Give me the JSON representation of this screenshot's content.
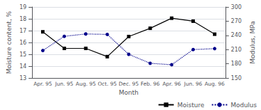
{
  "chart_data": {
    "type": "line",
    "xlabel": "Month",
    "ylabel": "Moisture content, %",
    "y2label": "Modulus, MPa",
    "categories": [
      "Apr. 95",
      "Jun. 95",
      "Aug. 95",
      "Oct. 95",
      "Dec. 95",
      "Feb. 96",
      "Apr. 96",
      "Jun. 96",
      "Aug. 96"
    ],
    "series": [
      {
        "name": "Moisture",
        "color": "#000000",
        "marker": "square",
        "line_style": "solid",
        "values": [
          16.9,
          15.5,
          15.5,
          14.8,
          16.5,
          17.2,
          18.05,
          17.8,
          16.7
        ]
      },
      {
        "name": "Modulus",
        "color": "#00008b",
        "marker": "circle",
        "line_style": "dotted",
        "axis": "y2",
        "values": [
          208,
          238,
          243,
          242,
          200,
          181,
          178,
          210,
          212
        ]
      }
    ],
    "ylim": [
      13,
      19
    ],
    "yticks": [
      13,
      14,
      15,
      16,
      17,
      18,
      19
    ],
    "y2lim": [
      150,
      300
    ],
    "y2ticks": [
      150,
      180,
      210,
      240,
      270,
      300
    ],
    "grid": true,
    "legend": "lower right"
  }
}
